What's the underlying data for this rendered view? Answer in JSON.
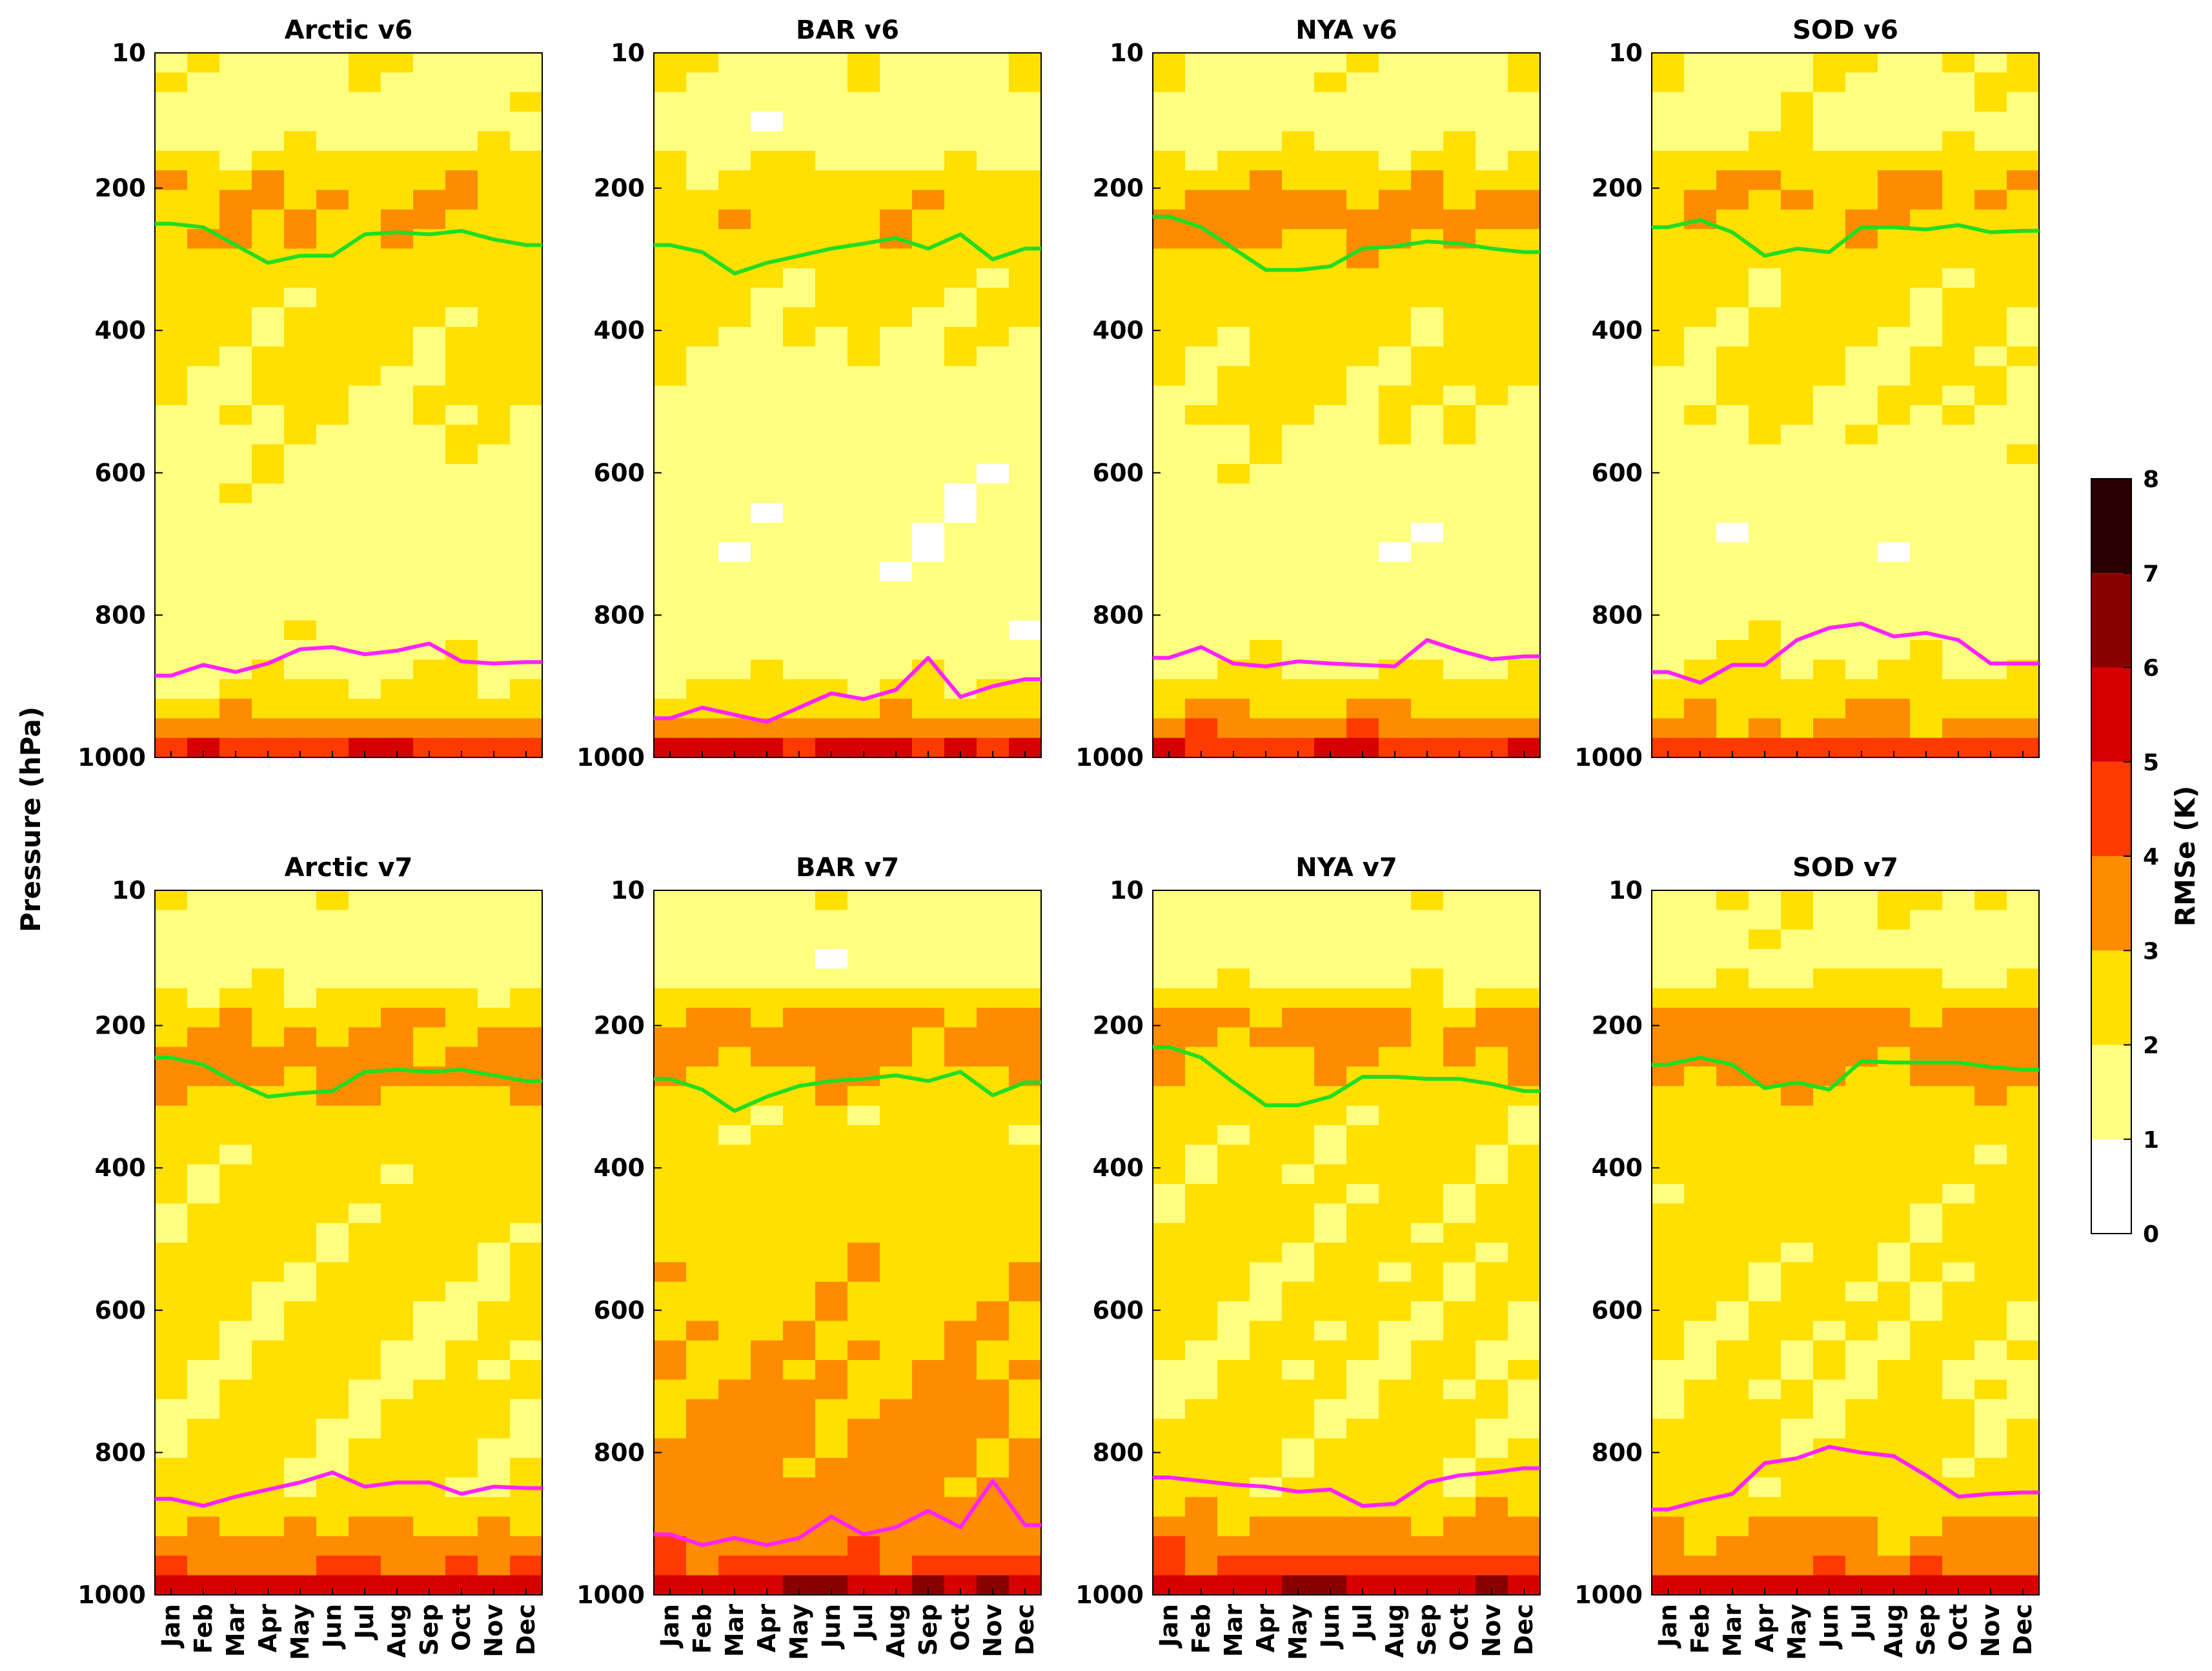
{
  "chart_data": [
    {
      "type": "heatmap",
      "title": "Arctic v6",
      "categories": [
        "Jan",
        "Feb",
        "Mar",
        "Apr",
        "May",
        "Jun",
        "Jul",
        "Aug",
        "Sep",
        "Oct",
        "Nov",
        "Dec"
      ],
      "ylim": [
        1000,
        10
      ],
      "y_ticks": [
        "10",
        "200",
        "400",
        "600",
        "800",
        "1000"
      ],
      "tropopause_hPa": [
        250,
        255,
        280,
        305,
        295,
        295,
        265,
        262,
        265,
        260,
        272,
        280
      ],
      "boundary_layer_hPa": [
        885,
        870,
        880,
        868,
        848,
        845,
        855,
        850,
        840,
        865,
        868,
        866
      ],
      "rmse_profile_K": [
        [
          10,
          1.8
        ],
        [
          120,
          1.5
        ],
        [
          180,
          2.8
        ],
        [
          260,
          3.0
        ],
        [
          330,
          2.4
        ],
        [
          500,
          2.0
        ],
        [
          700,
          1.4
        ],
        [
          850,
          1.6
        ],
        [
          920,
          2.3
        ],
        [
          960,
          3.6
        ],
        [
          1000,
          5.5
        ]
      ]
    },
    {
      "type": "heatmap",
      "title": "BAR v6",
      "categories": [
        "Jan",
        "Feb",
        "Mar",
        "Apr",
        "May",
        "Jun",
        "Jul",
        "Aug",
        "Sep",
        "Oct",
        "Nov",
        "Dec"
      ],
      "ylim": [
        1000,
        10
      ],
      "y_ticks": [
        "10",
        "200",
        "400",
        "600",
        "800",
        "1000"
      ],
      "tropopause_hPa": [
        280,
        290,
        320,
        305,
        295,
        285,
        278,
        270,
        285,
        265,
        300,
        285
      ],
      "boundary_layer_hPa": [
        945,
        930,
        940,
        950,
        930,
        910,
        918,
        905,
        860,
        915,
        900,
        890
      ],
      "rmse_profile_K": [
        [
          10,
          2.0
        ],
        [
          120,
          1.2
        ],
        [
          200,
          2.6
        ],
        [
          260,
          2.8
        ],
        [
          330,
          2.2
        ],
        [
          500,
          1.6
        ],
        [
          700,
          1.2
        ],
        [
          850,
          1.4
        ],
        [
          920,
          2.4
        ],
        [
          960,
          3.4
        ],
        [
          1000,
          6.0
        ]
      ]
    },
    {
      "type": "heatmap",
      "title": "NYA v6",
      "categories": [
        "Jan",
        "Feb",
        "Mar",
        "Apr",
        "May",
        "Jun",
        "Jul",
        "Aug",
        "Sep",
        "Oct",
        "Nov",
        "Dec"
      ],
      "ylim": [
        1000,
        10
      ],
      "y_ticks": [
        "10",
        "200",
        "400",
        "600",
        "800",
        "1000"
      ],
      "tropopause_hPa": [
        240,
        255,
        285,
        315,
        315,
        310,
        285,
        282,
        275,
        278,
        285,
        290
      ],
      "boundary_layer_hPa": [
        860,
        845,
        868,
        872,
        865,
        868,
        870,
        872,
        835,
        850,
        862,
        858
      ],
      "rmse_profile_K": [
        [
          10,
          1.8
        ],
        [
          120,
          1.4
        ],
        [
          180,
          2.6
        ],
        [
          240,
          3.6
        ],
        [
          300,
          2.6
        ],
        [
          500,
          2.0
        ],
        [
          700,
          1.3
        ],
        [
          850,
          1.6
        ],
        [
          920,
          2.6
        ],
        [
          960,
          3.8
        ],
        [
          1000,
          5.4
        ]
      ]
    },
    {
      "type": "heatmap",
      "title": "SOD v6",
      "categories": [
        "Jan",
        "Feb",
        "Mar",
        "Apr",
        "May",
        "Jun",
        "Jul",
        "Aug",
        "Sep",
        "Oct",
        "Nov",
        "Dec"
      ],
      "ylim": [
        1000,
        10
      ],
      "y_ticks": [
        "10",
        "200",
        "400",
        "600",
        "800",
        "1000"
      ],
      "tropopause_hPa": [
        255,
        245,
        262,
        295,
        285,
        290,
        255,
        255,
        258,
        252,
        262,
        260
      ],
      "boundary_layer_hPa": [
        880,
        895,
        870,
        870,
        835,
        818,
        812,
        830,
        825,
        835,
        868,
        868
      ],
      "rmse_profile_K": [
        [
          10,
          2.0
        ],
        [
          120,
          1.6
        ],
        [
          200,
          3.2
        ],
        [
          260,
          2.8
        ],
        [
          330,
          2.2
        ],
        [
          500,
          2.0
        ],
        [
          700,
          1.3
        ],
        [
          850,
          1.8
        ],
        [
          920,
          2.6
        ],
        [
          960,
          3.2
        ],
        [
          1000,
          5.2
        ]
      ]
    },
    {
      "type": "heatmap",
      "title": "Arctic v7",
      "categories": [
        "Jan",
        "Feb",
        "Mar",
        "Apr",
        "May",
        "Jun",
        "Jul",
        "Aug",
        "Sep",
        "Oct",
        "Nov",
        "Dec"
      ],
      "ylim": [
        1000,
        10
      ],
      "y_ticks": [
        "10",
        "200",
        "400",
        "600",
        "800",
        "1000"
      ],
      "tropopause_hPa": [
        245,
        255,
        280,
        300,
        295,
        292,
        265,
        262,
        265,
        262,
        270,
        278
      ],
      "boundary_layer_hPa": [
        865,
        875,
        862,
        852,
        842,
        828,
        848,
        842,
        842,
        858,
        848,
        850
      ],
      "rmse_profile_K": [
        [
          10,
          1.8
        ],
        [
          120,
          1.4
        ],
        [
          200,
          3.0
        ],
        [
          260,
          3.4
        ],
        [
          330,
          2.4
        ],
        [
          500,
          2.2
        ],
        [
          700,
          2.0
        ],
        [
          850,
          2.2
        ],
        [
          920,
          3.2
        ],
        [
          960,
          4.0
        ],
        [
          1000,
          6.2
        ]
      ]
    },
    {
      "type": "heatmap",
      "title": "BAR v7",
      "categories": [
        "Jan",
        "Feb",
        "Mar",
        "Apr",
        "May",
        "Jun",
        "Jul",
        "Aug",
        "Sep",
        "Oct",
        "Nov",
        "Dec"
      ],
      "ylim": [
        1000,
        10
      ],
      "y_ticks": [
        "10",
        "200",
        "400",
        "600",
        "800",
        "1000"
      ],
      "tropopause_hPa": [
        275,
        290,
        320,
        300,
        285,
        278,
        275,
        270,
        278,
        265,
        298,
        280
      ],
      "boundary_layer_hPa": [
        915,
        930,
        920,
        930,
        920,
        890,
        915,
        905,
        882,
        905,
        840,
        902
      ],
      "rmse_profile_K": [
        [
          10,
          1.8
        ],
        [
          120,
          1.3
        ],
        [
          200,
          3.4
        ],
        [
          260,
          3.0
        ],
        [
          330,
          2.2
        ],
        [
          500,
          2.6
        ],
        [
          700,
          3.0
        ],
        [
          850,
          3.4
        ],
        [
          920,
          3.6
        ],
        [
          960,
          4.2
        ],
        [
          1000,
          6.8
        ]
      ]
    },
    {
      "type": "heatmap",
      "title": "NYA v7",
      "categories": [
        "Jan",
        "Feb",
        "Mar",
        "Apr",
        "May",
        "Jun",
        "Jul",
        "Aug",
        "Sep",
        "Oct",
        "Nov",
        "Dec"
      ],
      "ylim": [
        1000,
        10
      ],
      "y_ticks": [
        "10",
        "200",
        "400",
        "600",
        "800",
        "1000"
      ],
      "tropopause_hPa": [
        230,
        245,
        280,
        312,
        312,
        300,
        272,
        272,
        275,
        275,
        282,
        292
      ],
      "boundary_layer_hPa": [
        835,
        840,
        845,
        848,
        855,
        852,
        875,
        872,
        842,
        832,
        828,
        822
      ],
      "rmse_profile_K": [
        [
          10,
          1.8
        ],
        [
          120,
          1.4
        ],
        [
          200,
          3.4
        ],
        [
          260,
          2.8
        ],
        [
          330,
          2.2
        ],
        [
          500,
          2.2
        ],
        [
          700,
          2.0
        ],
        [
          850,
          2.4
        ],
        [
          920,
          3.4
        ],
        [
          960,
          4.4
        ],
        [
          1000,
          6.6
        ]
      ]
    },
    {
      "type": "heatmap",
      "title": "SOD v7",
      "categories": [
        "Jan",
        "Feb",
        "Mar",
        "Apr",
        "May",
        "Jun",
        "Jul",
        "Aug",
        "Sep",
        "Oct",
        "Nov",
        "Dec"
      ],
      "ylim": [
        1000,
        10
      ],
      "y_ticks": [
        "10",
        "200",
        "400",
        "600",
        "800",
        "1000"
      ],
      "tropopause_hPa": [
        255,
        245,
        255,
        288,
        280,
        290,
        250,
        252,
        252,
        252,
        258,
        262
      ],
      "boundary_layer_hPa": [
        880,
        868,
        858,
        815,
        808,
        792,
        800,
        805,
        832,
        862,
        858,
        856
      ],
      "rmse_profile_K": [
        [
          10,
          2.0
        ],
        [
          120,
          1.6
        ],
        [
          200,
          3.6
        ],
        [
          260,
          3.2
        ],
        [
          330,
          2.4
        ],
        [
          500,
          2.2
        ],
        [
          700,
          2.0
        ],
        [
          850,
          2.4
        ],
        [
          920,
          3.2
        ],
        [
          960,
          3.8
        ],
        [
          1000,
          6.4
        ]
      ]
    }
  ],
  "y_axis_label": "Pressure (hPa)",
  "colorbar": {
    "label": "RMSe (K)",
    "ticks": [
      "0",
      "1",
      "2",
      "3",
      "4",
      "5",
      "6",
      "7",
      "8"
    ],
    "range": [
      0,
      8
    ],
    "colors": [
      "#ffffff",
      "#ffff7f",
      "#ffe000",
      "#ff8c00",
      "#ff3a00",
      "#d60000",
      "#8a0000",
      "#2a0000"
    ]
  },
  "line_colors": {
    "tropopause": "#22dd22",
    "boundary_layer": "#ff22ff"
  }
}
